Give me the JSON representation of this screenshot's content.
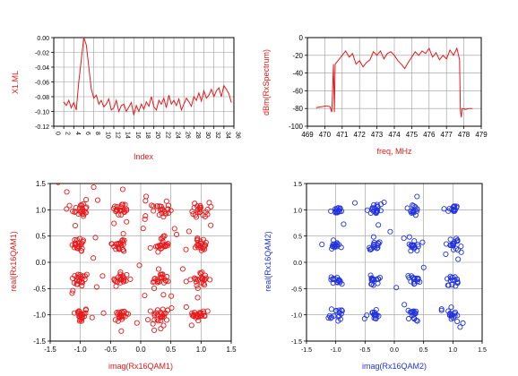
{
  "chart_data": [
    {
      "type": "line",
      "xlabel": "Index",
      "ylabel": "X1.ML",
      "ylim": [
        -0.12,
        0.0
      ],
      "yticks": [
        "0.00",
        "-0.02",
        "-0.04",
        "-0.06",
        "-0.08",
        "-0.10",
        "-0.12"
      ],
      "xticks": [
        "0",
        "2",
        "4",
        "6",
        "8",
        "10",
        "12",
        "14",
        "16",
        "18",
        "20",
        "22",
        "24",
        "26",
        "28",
        "30",
        "32",
        "34",
        "36"
      ],
      "color": "#e8191a",
      "grid": true,
      "series": [
        {
          "x": [
            2,
            2.5,
            3,
            3.5,
            4,
            4.5,
            5,
            5.5,
            6,
            6.5,
            7,
            7.5,
            8,
            8.5,
            9,
            9.5,
            10,
            10.5,
            11,
            11.5,
            12,
            12.5,
            13,
            13.5,
            14,
            14.5,
            15,
            15.5,
            16,
            16.5,
            17,
            17.5,
            18,
            18.5,
            19,
            19.5,
            20,
            20.5,
            21,
            21.5,
            22,
            22.5,
            23,
            23.5,
            24,
            24.5,
            25,
            25.5,
            26,
            26.5,
            27,
            27.5,
            28,
            28.5,
            29,
            29.5,
            30,
            30.5,
            31,
            31.5,
            32,
            32.5,
            33,
            33.5,
            34,
            34.5,
            35,
            35.5
          ],
          "values": [
            -0.087,
            -0.092,
            -0.085,
            -0.095,
            -0.088,
            -0.098,
            -0.06,
            -0.03,
            0.0,
            -0.01,
            -0.04,
            -0.07,
            -0.082,
            -0.078,
            -0.09,
            -0.085,
            -0.094,
            -0.09,
            -0.083,
            -0.098,
            -0.095,
            -0.085,
            -0.1,
            -0.092,
            -0.09,
            -0.1,
            -0.094,
            -0.088,
            -0.105,
            -0.092,
            -0.1,
            -0.09,
            -0.097,
            -0.087,
            -0.093,
            -0.08,
            -0.094,
            -0.098,
            -0.085,
            -0.09,
            -0.082,
            -0.095,
            -0.078,
            -0.09,
            -0.085,
            -0.092,
            -0.083,
            -0.098,
            -0.09,
            -0.082,
            -0.087,
            -0.093,
            -0.08,
            -0.085,
            -0.075,
            -0.086,
            -0.072,
            -0.082,
            -0.078,
            -0.07,
            -0.08,
            -0.072,
            -0.068,
            -0.08,
            -0.065,
            -0.07,
            -0.076,
            -0.088
          ]
        }
      ]
    },
    {
      "type": "line",
      "xlabel": "freq, MHz",
      "ylabel": "dBm(RxSpectrum)",
      "xlim": [
        469,
        479
      ],
      "ylim": [
        -100,
        0
      ],
      "xticks": [
        "469",
        "470",
        "471",
        "472",
        "473",
        "474",
        "475",
        "476",
        "477",
        "478",
        "479"
      ],
      "yticks": [
        "0",
        "-20",
        "-40",
        "-60",
        "-80",
        "-100"
      ],
      "color": "#e8191a",
      "grid": true,
      "series": [
        {
          "x": [
            469.5,
            469.8,
            470.1,
            470.3,
            470.4,
            470.45,
            470.5,
            470.55,
            470.6,
            470.8,
            471.0,
            471.2,
            471.4,
            471.6,
            471.8,
            472.0,
            472.2,
            472.4,
            472.6,
            472.8,
            473.0,
            473.2,
            473.4,
            473.6,
            473.8,
            474.0,
            474.2,
            474.4,
            474.6,
            474.8,
            475.0,
            475.2,
            475.4,
            475.6,
            475.8,
            476.0,
            476.2,
            476.4,
            476.6,
            476.8,
            477.0,
            477.2,
            477.4,
            477.6,
            477.75,
            477.8,
            477.85,
            477.9,
            478.1,
            478.3,
            478.5
          ],
          "values": [
            -79,
            -78,
            -77,
            -78,
            -84,
            -60,
            -30,
            -84,
            -30,
            -25,
            -20,
            -15,
            -22,
            -18,
            -30,
            -26,
            -33,
            -28,
            -25,
            -16,
            -20,
            -15,
            -24,
            -18,
            -16,
            -20,
            -26,
            -30,
            -35,
            -28,
            -22,
            -16,
            -20,
            -15,
            -18,
            -12,
            -22,
            -17,
            -25,
            -20,
            -24,
            -14,
            -20,
            -12,
            -25,
            -82,
            -90,
            -80,
            -81,
            -80,
            -80
          ]
        }
      ]
    },
    {
      "type": "scatter",
      "xlabel": "imag(Rx16QAM1)",
      "ylabel": "real(Rx16QAM1)",
      "xlim": [
        -1.5,
        1.5
      ],
      "ylim": [
        -1.5,
        1.5
      ],
      "xticks": [
        "-1.5",
        "-1.0",
        "-0.5",
        "0.0",
        "0.5",
        "1.0",
        "1.5"
      ],
      "yticks": [
        "1.5",
        "1.0",
        "0.5",
        "0.0",
        "-0.5",
        "-1.0",
        "-1.5"
      ],
      "color": "#e8191a",
      "marker": "open-circle",
      "grid": true,
      "cluster_centers": [
        -1.0,
        -0.333,
        0.333,
        1.0
      ],
      "cluster_spread": 0.07,
      "points_per_cluster": 22,
      "outlier_count": 55,
      "outlier_spread": 0.3
    },
    {
      "type": "scatter",
      "xlabel": "imag(Rx16QAM2)",
      "ylabel": "real(Rx16QAM2)",
      "xlim": [
        -1.5,
        1.5
      ],
      "ylim": [
        -1.5,
        1.5
      ],
      "xticks": [
        "-1.5",
        "-1.0",
        "-0.5",
        "0.0",
        "0.5",
        "1.0",
        "1.5"
      ],
      "yticks": [
        "1.5",
        "1.0",
        "0.5",
        "0.0",
        "-0.5",
        "-1.0",
        "-1.5"
      ],
      "color": "#2233dd",
      "marker": "open-circle",
      "grid": true,
      "cluster_centers": [
        -1.0,
        -0.333,
        0.333,
        1.0
      ],
      "cluster_spread": 0.05,
      "points_per_cluster": 16,
      "outlier_count": 28,
      "outlier_spread": 0.18
    }
  ]
}
